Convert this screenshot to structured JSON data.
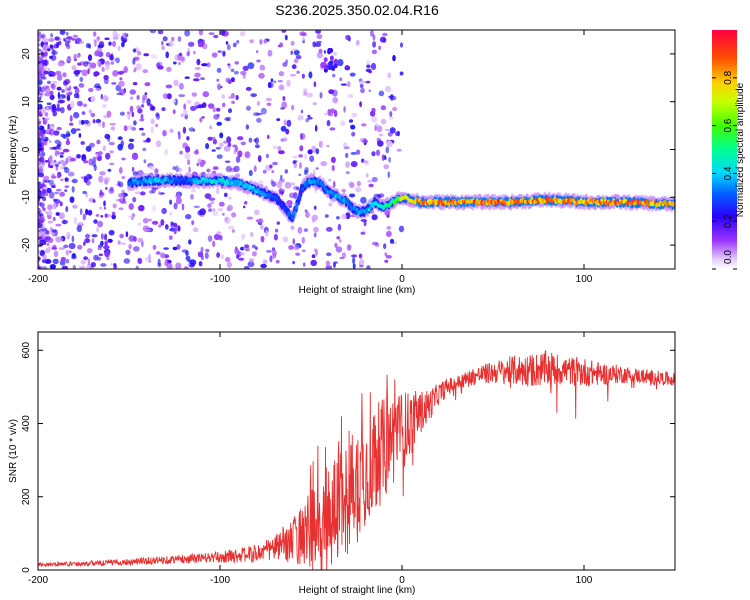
{
  "title": "S236.2025.350.02.04.R16",
  "chart_data": [
    {
      "type": "heatmap",
      "name": "spectrogram",
      "xlabel": "Height of straight line (km)",
      "ylabel": "Frequency (Hz)",
      "xlim": [
        -200,
        150
      ],
      "ylim": [
        -25,
        25
      ],
      "x_ticks": [
        -200,
        -100,
        0,
        100
      ],
      "y_ticks": [
        -20,
        -10,
        0,
        10,
        20
      ],
      "x_tick_labels": [
        "-200",
        "-100",
        "0",
        "100"
      ],
      "y_tick_labels": [
        "-20",
        "-10",
        "0",
        "10",
        "20"
      ],
      "colorbar": {
        "label": "Normalized spectral amplitude",
        "range": [
          0.0,
          1.0
        ],
        "ticks": [
          0.0,
          0.2,
          0.4,
          0.6,
          0.8
        ],
        "tick_labels": [
          "0.0",
          "0.2",
          "0.4",
          "0.6",
          "0.8"
        ]
      },
      "ridge": {
        "x": [
          -150,
          -140,
          -130,
          -120,
          -110,
          -100,
          -90,
          -80,
          -70,
          -65,
          -60,
          -55,
          -50,
          -45,
          -40,
          -35,
          -30,
          -25,
          -20,
          -15,
          -10,
          -5,
          0,
          10,
          20,
          40,
          60,
          80,
          100,
          120,
          150
        ],
        "y": [
          -7,
          -6.5,
          -6.5,
          -6.5,
          -6.5,
          -6.5,
          -7,
          -8.5,
          -10,
          -12,
          -14.5,
          -8,
          -6.5,
          -7,
          -9,
          -10,
          -11,
          -13,
          -13,
          -11,
          -12,
          -11,
          -10,
          -11,
          -11,
          -11,
          -11,
          -10.5,
          -11,
          -11,
          -11.5
        ],
        "amplitude": [
          0.35,
          0.4,
          0.4,
          0.3,
          0.45,
          0.45,
          0.4,
          0.4,
          0.3,
          0.3,
          0.35,
          0.3,
          0.4,
          0.35,
          0.35,
          0.4,
          0.35,
          0.35,
          0.4,
          0.45,
          0.5,
          0.55,
          0.75,
          0.9,
          0.9,
          0.95,
          0.9,
          0.9,
          0.85,
          0.9,
          0.9
        ]
      },
      "noise_region": [
        -200,
        -100
      ]
    },
    {
      "type": "line",
      "name": "snr",
      "xlabel": "Height of straight line (km)",
      "ylabel": "SNR (10 * v/v)",
      "xlim": [
        -200,
        150
      ],
      "ylim": [
        0,
        650
      ],
      "x_ticks": [
        -200,
        -100,
        0,
        100
      ],
      "y_ticks": [
        0,
        200,
        400,
        600
      ],
      "x_tick_labels": [
        "-200",
        "-100",
        "0",
        "100"
      ],
      "y_tick_labels": [
        "0",
        "200",
        "400",
        "600"
      ],
      "color": "#e83030",
      "series": [
        {
          "name": "SNR",
          "x": [
            -200,
            -180,
            -160,
            -140,
            -120,
            -100,
            -90,
            -80,
            -70,
            -60,
            -50,
            -45,
            -40,
            -35,
            -30,
            -25,
            -20,
            -15,
            -10,
            -5,
            0,
            5,
            10,
            15,
            20,
            25,
            30,
            40,
            50,
            60,
            70,
            80,
            90,
            100,
            110,
            120,
            130,
            140,
            150
          ],
          "y": [
            15,
            17,
            20,
            25,
            30,
            35,
            40,
            45,
            60,
            80,
            110,
            130,
            150,
            170,
            200,
            230,
            270,
            300,
            330,
            360,
            380,
            400,
            430,
            450,
            480,
            500,
            510,
            530,
            540,
            545,
            545,
            550,
            545,
            540,
            535,
            535,
            530,
            525,
            520
          ],
          "noise_amplitude": [
            6,
            6,
            8,
            10,
            12,
            15,
            20,
            25,
            35,
            60,
            120,
            170,
            170,
            170,
            160,
            160,
            150,
            150,
            140,
            130,
            110,
            90,
            60,
            45,
            30,
            25,
            20,
            25,
            30,
            40,
            45,
            50,
            40,
            40,
            30,
            25,
            20,
            20,
            18
          ]
        }
      ]
    }
  ]
}
